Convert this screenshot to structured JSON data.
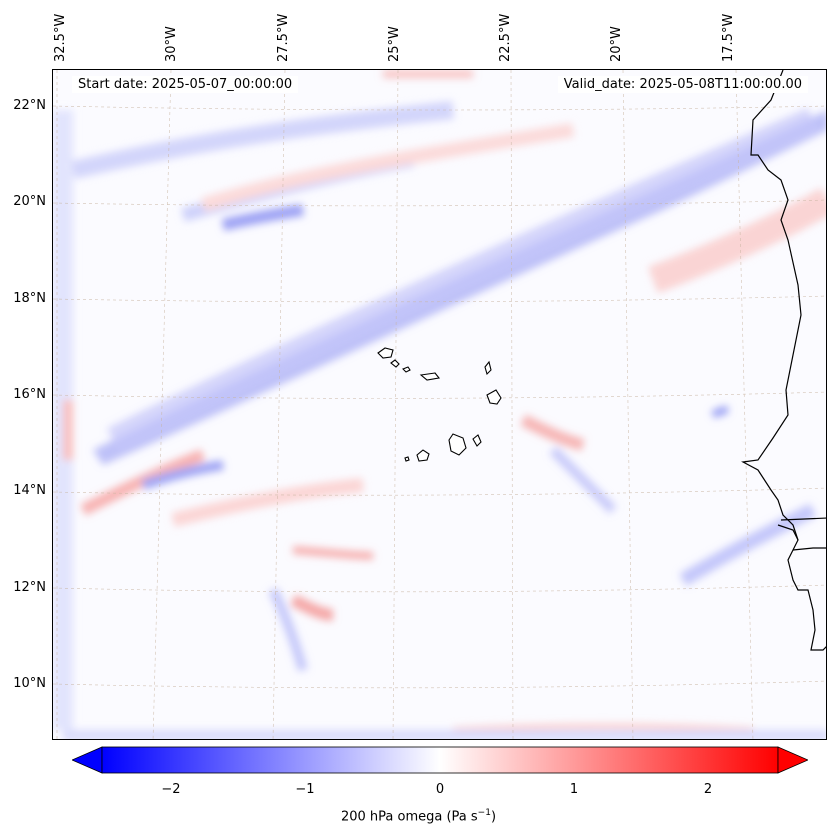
{
  "header": {
    "start_date": "Start date: 2025-05-07_00:00:00",
    "valid_date": "Valid_date: 2025-05-08T11:00:00.00"
  },
  "axes": {
    "longitude_labels": [
      "32.5°W",
      "30°W",
      "27.5°W",
      "25°W",
      "22.5°W",
      "20°W",
      "17.5°W"
    ],
    "latitude_labels": [
      "22°N",
      "20°N",
      "18°N",
      "16°N",
      "14°N",
      "12°N",
      "10°N"
    ]
  },
  "colorbar": {
    "tick_labels": [
      "−2",
      "−1",
      "0",
      "1",
      "2"
    ],
    "label": "200 hPa omega (Pa s",
    "label_exp": "−1",
    "label_close": ")",
    "min_color": "#0000ff",
    "mid_color": "#ffffff",
    "max_color": "#ff0000"
  },
  "map": {
    "background_color": "#fbfbff",
    "coastline_color": "#000000",
    "grid_color": "#c8b4a0"
  }
}
